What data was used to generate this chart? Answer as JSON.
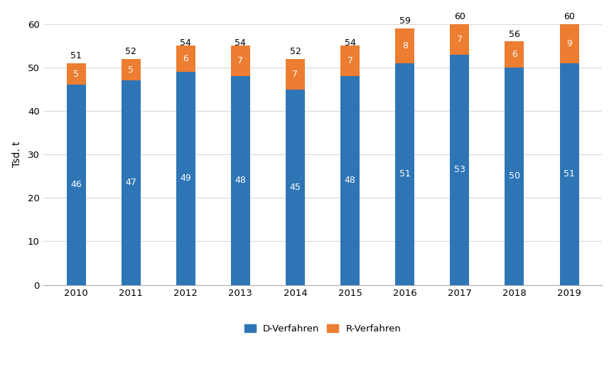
{
  "years": [
    "2010",
    "2011",
    "2012",
    "2013",
    "2014",
    "2015",
    "2016",
    "2017",
    "2018",
    "2019"
  ],
  "d_verfahren": [
    46,
    47,
    49,
    48,
    45,
    48,
    51,
    53,
    50,
    51
  ],
  "r_verfahren": [
    5,
    5,
    6,
    7,
    7,
    7,
    8,
    7,
    6,
    9
  ],
  "totals": [
    51,
    52,
    54,
    54,
    52,
    54,
    59,
    60,
    56,
    60
  ],
  "d_color": "#2e75b6",
  "r_color": "#ed7d31",
  "ylabel": "Tsd. t",
  "ylim": [
    0,
    60
  ],
  "yticks": [
    0,
    10,
    20,
    30,
    40,
    50,
    60
  ],
  "legend_d": "D-Verfahren",
  "legend_r": "R-Verfahren",
  "background_color": "#ffffff",
  "grid_color": "#d9d9d9",
  "bar_width": 0.35
}
